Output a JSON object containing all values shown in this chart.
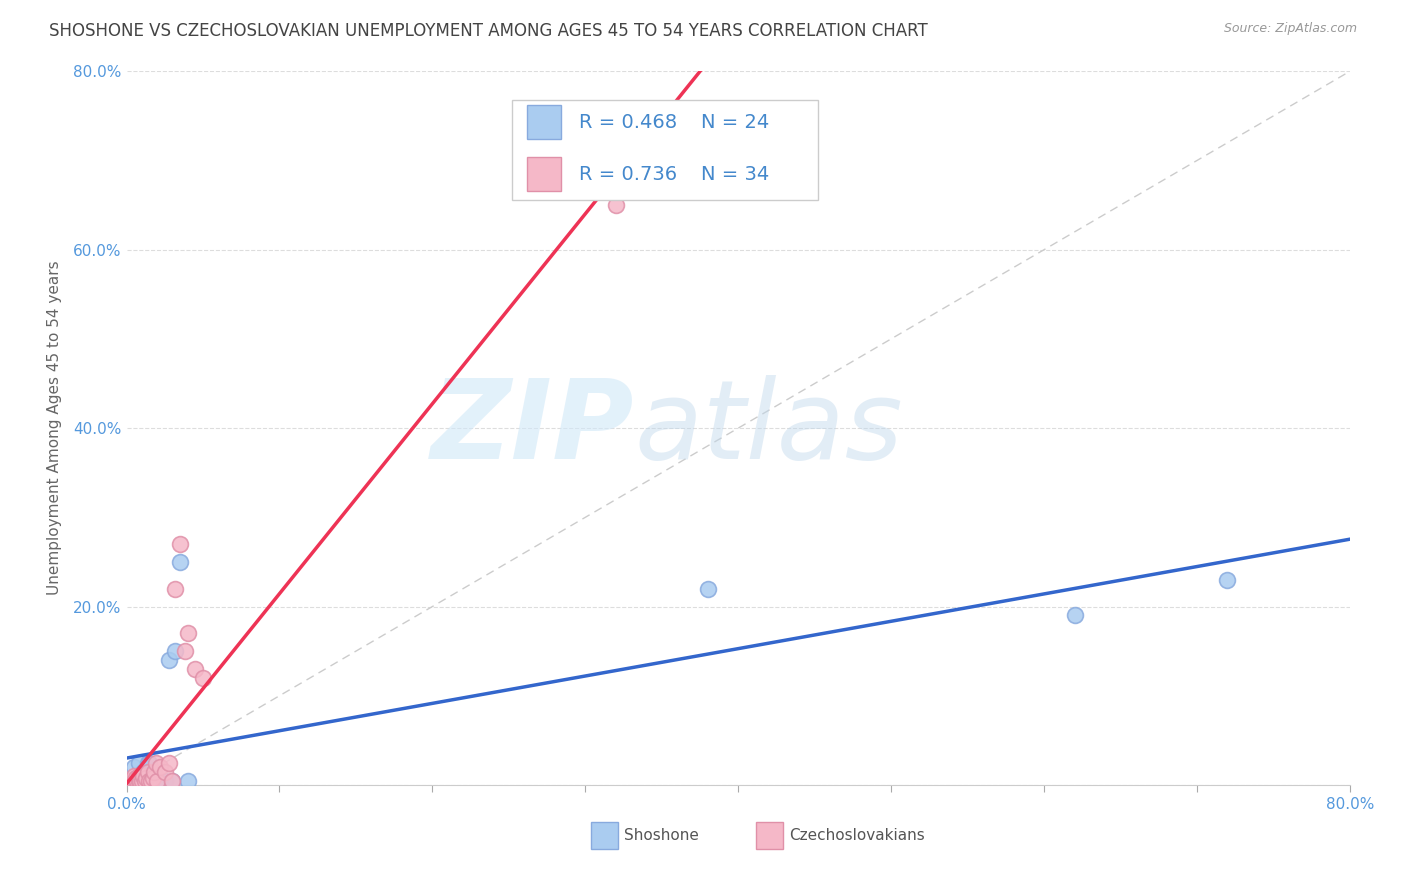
{
  "title": "SHOSHONE VS CZECHOSLOVAKIAN UNEMPLOYMENT AMONG AGES 45 TO 54 YEARS CORRELATION CHART",
  "source": "Source: ZipAtlas.com",
  "ylabel": "Unemployment Among Ages 45 to 54 years",
  "xlim": [
    0,
    0.8
  ],
  "ylim": [
    0,
    0.8
  ],
  "shoshone_color": "#aaccf0",
  "shoshone_edge": "#88aade",
  "czech_color": "#f5b8c8",
  "czech_edge": "#e090a8",
  "shoshone_line_color": "#3366cc",
  "czech_line_color": "#ee3355",
  "diagonal_color": "#cccccc",
  "text_color_blue": "#4488cc",
  "tick_color": "#5599dd",
  "grid_color": "#dddddd",
  "legend_text_color": "#4488cc",
  "R_sh": "0.468",
  "N_sh": "24",
  "R_cz": "0.736",
  "N_cz": "34",
  "shoshone_x": [
    0.003,
    0.005,
    0.007,
    0.008,
    0.009,
    0.01,
    0.011,
    0.012,
    0.013,
    0.014,
    0.015,
    0.016,
    0.018,
    0.02,
    0.022,
    0.025,
    0.028,
    0.03,
    0.032,
    0.035,
    0.04,
    0.38,
    0.62,
    0.72
  ],
  "shoshone_y": [
    0.005,
    0.02,
    0.005,
    0.025,
    0.005,
    0.005,
    0.015,
    0.005,
    0.005,
    0.025,
    0.025,
    0.015,
    0.005,
    0.005,
    0.005,
    0.005,
    0.14,
    0.005,
    0.15,
    0.25,
    0.005,
    0.22,
    0.19,
    0.23
  ],
  "czech_x": [
    0.001,
    0.002,
    0.003,
    0.004,
    0.005,
    0.005,
    0.006,
    0.006,
    0.007,
    0.008,
    0.008,
    0.009,
    0.01,
    0.011,
    0.012,
    0.013,
    0.014,
    0.015,
    0.016,
    0.017,
    0.018,
    0.019,
    0.02,
    0.022,
    0.025,
    0.028,
    0.03,
    0.032,
    0.035,
    0.038,
    0.04,
    0.045,
    0.05,
    0.32
  ],
  "czech_y": [
    0.005,
    0.005,
    0.005,
    0.005,
    0.005,
    0.01,
    0.005,
    0.008,
    0.005,
    0.005,
    0.01,
    0.005,
    0.005,
    0.01,
    0.005,
    0.008,
    0.015,
    0.005,
    0.005,
    0.008,
    0.015,
    0.025,
    0.005,
    0.02,
    0.015,
    0.025,
    0.005,
    0.22,
    0.27,
    0.15,
    0.17,
    0.13,
    0.12,
    0.65
  ],
  "marker_size": 130,
  "title_fontsize": 12,
  "axis_label_fontsize": 11,
  "tick_fontsize": 11,
  "legend_fontsize": 14,
  "source_fontsize": 9
}
